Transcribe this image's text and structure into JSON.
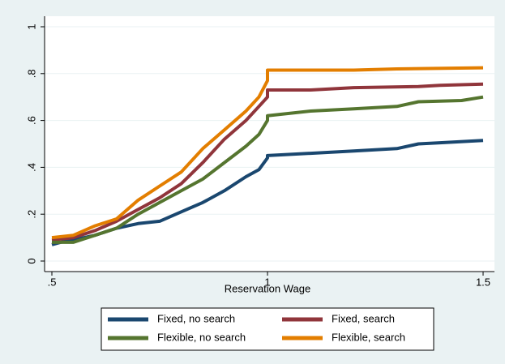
{
  "chart_data": {
    "type": "line",
    "xlabel": "Reservation Wage",
    "xlim": [
      0.5,
      1.5
    ],
    "ylim": [
      0,
      1
    ],
    "xticks": [
      {
        "value": 0.5,
        "label": ".5"
      },
      1,
      1.5
    ],
    "yticks": [
      0,
      {
        "value": 0.2,
        "label": ".2"
      },
      {
        "value": 0.4,
        "label": ".4"
      },
      {
        "value": 0.6,
        "label": ".6"
      },
      {
        "value": 0.8,
        "label": ".8"
      },
      1
    ],
    "grid": true,
    "legend": "bottom",
    "series": [
      {
        "name": "Fixed, no search",
        "color": "#1a476f",
        "x": [
          0.5,
          0.52,
          0.55,
          0.6,
          0.65,
          0.7,
          0.75,
          0.8,
          0.85,
          0.9,
          0.95,
          0.98,
          1.0,
          1.0,
          1.1,
          1.2,
          1.3,
          1.35,
          1.4,
          1.5
        ],
        "values": [
          0.07,
          0.08,
          0.09,
          0.11,
          0.14,
          0.16,
          0.17,
          0.21,
          0.25,
          0.3,
          0.36,
          0.39,
          0.44,
          0.45,
          0.46,
          0.47,
          0.48,
          0.5,
          0.505,
          0.515
        ]
      },
      {
        "name": "Fixed, search",
        "color": "#90353b",
        "x": [
          0.5,
          0.55,
          0.6,
          0.65,
          0.7,
          0.75,
          0.8,
          0.85,
          0.9,
          0.95,
          0.98,
          1.0,
          1.0,
          1.1,
          1.2,
          1.35,
          1.4,
          1.5
        ],
        "values": [
          0.09,
          0.1,
          0.13,
          0.17,
          0.22,
          0.27,
          0.33,
          0.42,
          0.52,
          0.6,
          0.66,
          0.7,
          0.73,
          0.73,
          0.74,
          0.745,
          0.75,
          0.755
        ]
      },
      {
        "name": "Flexible, no search",
        "color": "#55752f",
        "x": [
          0.5,
          0.55,
          0.6,
          0.65,
          0.7,
          0.75,
          0.8,
          0.85,
          0.9,
          0.95,
          0.98,
          1.0,
          1.0,
          1.1,
          1.2,
          1.3,
          1.35,
          1.45,
          1.5
        ],
        "values": [
          0.08,
          0.08,
          0.11,
          0.14,
          0.2,
          0.25,
          0.3,
          0.35,
          0.42,
          0.49,
          0.54,
          0.6,
          0.62,
          0.64,
          0.65,
          0.66,
          0.68,
          0.685,
          0.7
        ]
      },
      {
        "name": "Flexible, search",
        "color": "#e37e00",
        "x": [
          0.5,
          0.55,
          0.6,
          0.65,
          0.7,
          0.75,
          0.8,
          0.85,
          0.9,
          0.95,
          0.98,
          1.0,
          1.0,
          1.2,
          1.3,
          1.5
        ],
        "values": [
          0.1,
          0.11,
          0.15,
          0.18,
          0.26,
          0.32,
          0.38,
          0.48,
          0.56,
          0.64,
          0.7,
          0.77,
          0.815,
          0.815,
          0.82,
          0.825
        ]
      }
    ]
  }
}
